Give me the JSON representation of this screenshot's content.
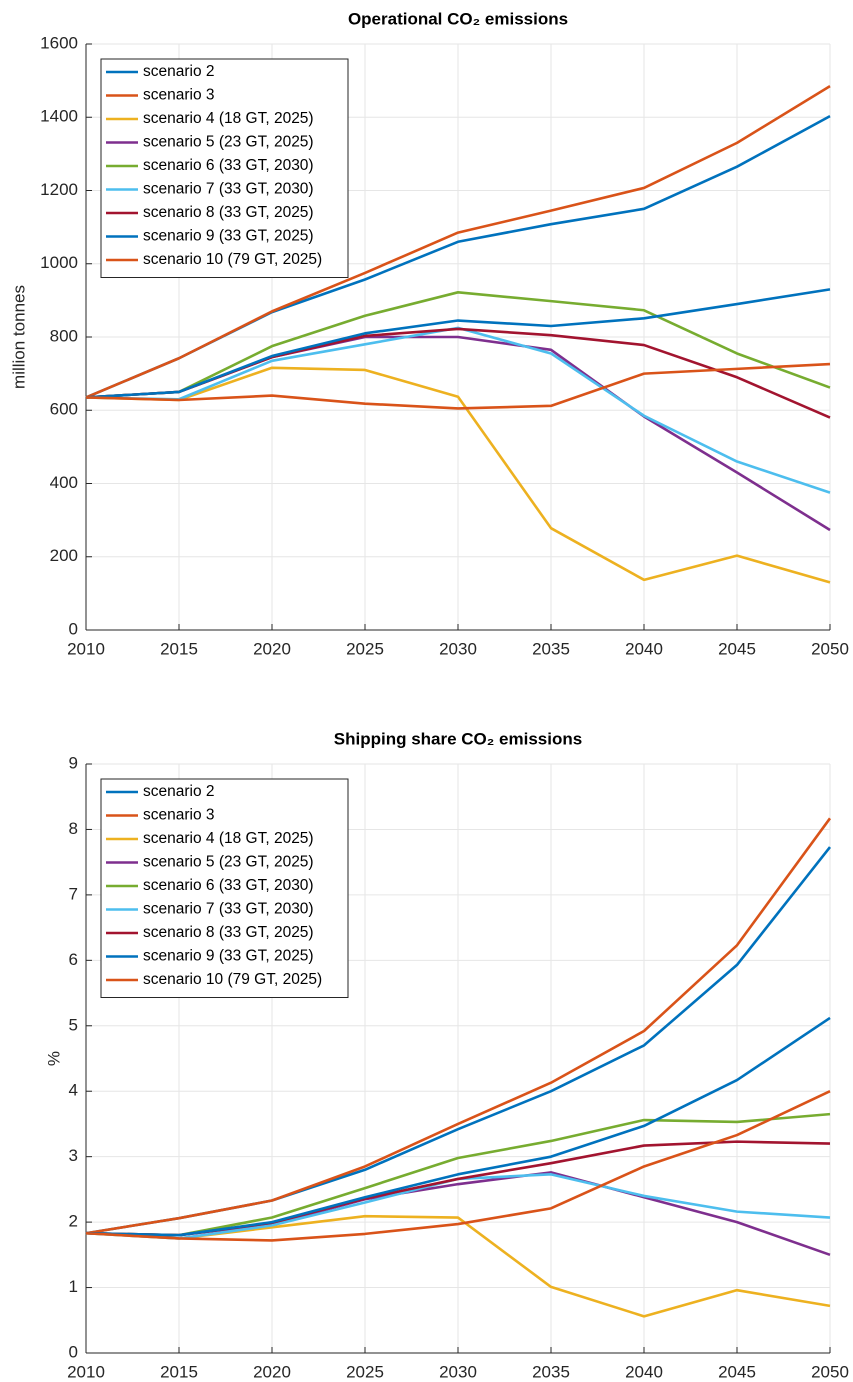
{
  "chart_data": [
    {
      "type": "line",
      "title": "Operational CO₂ emissions",
      "ylabel": "million tonnes",
      "x": [
        2010,
        2015,
        2020,
        2025,
        2030,
        2035,
        2040,
        2045,
        2050
      ],
      "xlim": [
        2010,
        2050
      ],
      "xticks": [
        2010,
        2015,
        2020,
        2025,
        2030,
        2035,
        2040,
        2045,
        2050
      ],
      "ylim": [
        0,
        1600
      ],
      "yticks": [
        0,
        200,
        400,
        600,
        800,
        1000,
        1200,
        1400,
        1600
      ],
      "grid": true,
      "legend": "northwest",
      "series": [
        {
          "name": "scenario 2",
          "color": "#0072BD",
          "values": [
            635,
            742,
            868,
            957,
            1060,
            1108,
            1150,
            1265,
            1403
          ]
        },
        {
          "name": "scenario 3",
          "color": "#D95319",
          "values": [
            635,
            742,
            870,
            975,
            1085,
            1145,
            1207,
            1330,
            1485
          ]
        },
        {
          "name": "scenario 4 (18 GT, 2025)",
          "color": "#EDB120",
          "values": [
            635,
            628,
            716,
            710,
            637,
            278,
            137,
            203,
            130
          ]
        },
        {
          "name": "scenario 5 (23 GT, 2025)",
          "color": "#7E2F8E",
          "values": [
            635,
            650,
            745,
            800,
            800,
            765,
            583,
            430,
            273
          ]
        },
        {
          "name": "scenario 6 (33 GT, 2030)",
          "color": "#77AC30",
          "values": [
            635,
            650,
            775,
            858,
            922,
            898,
            873,
            755,
            662
          ]
        },
        {
          "name": "scenario 7 (33 GT, 2030)",
          "color": "#4DBEEE",
          "values": [
            635,
            630,
            735,
            780,
            825,
            755,
            585,
            460,
            375
          ]
        },
        {
          "name": "scenario 8 (33 GT, 2025)",
          "color": "#A2142F",
          "values": [
            635,
            650,
            745,
            803,
            822,
            805,
            778,
            690,
            580
          ]
        },
        {
          "name": "scenario 9 (33 GT, 2025)",
          "color": "#0072BD",
          "values": [
            635,
            650,
            748,
            810,
            845,
            830,
            851,
            890,
            930
          ]
        },
        {
          "name": "scenario 10 (79 GT, 2025)",
          "color": "#D95319",
          "values": [
            635,
            628,
            640,
            618,
            605,
            612,
            700,
            713,
            726
          ]
        }
      ]
    },
    {
      "type": "line",
      "title": "Shipping share CO₂ emissions",
      "ylabel": "%",
      "x": [
        2010,
        2015,
        2020,
        2025,
        2030,
        2035,
        2040,
        2045,
        2050
      ],
      "xlim": [
        2010,
        2050
      ],
      "xticks": [
        2010,
        2015,
        2020,
        2025,
        2030,
        2035,
        2040,
        2045,
        2050
      ],
      "ylim": [
        0,
        9
      ],
      "yticks": [
        0,
        1,
        2,
        3,
        4,
        5,
        6,
        7,
        8,
        9
      ],
      "grid": true,
      "legend": "northwest",
      "series": [
        {
          "name": "scenario 2",
          "color": "#0072BD",
          "values": [
            1.83,
            2.06,
            2.33,
            2.8,
            3.42,
            4.0,
            4.7,
            5.93,
            7.73
          ]
        },
        {
          "name": "scenario 3",
          "color": "#D95319",
          "values": [
            1.83,
            2.06,
            2.33,
            2.85,
            3.5,
            4.13,
            4.92,
            6.23,
            8.17
          ]
        },
        {
          "name": "scenario 4 (18 GT, 2025)",
          "color": "#EDB120",
          "values": [
            1.83,
            1.75,
            1.92,
            2.09,
            2.07,
            1.01,
            0.56,
            0.96,
            0.72
          ]
        },
        {
          "name": "scenario 5 (23 GT, 2025)",
          "color": "#7E2F8E",
          "values": [
            1.83,
            1.8,
            1.97,
            2.35,
            2.58,
            2.76,
            2.38,
            2.0,
            1.5
          ]
        },
        {
          "name": "scenario 6 (33 GT, 2030)",
          "color": "#77AC30",
          "values": [
            1.83,
            1.8,
            2.07,
            2.52,
            2.98,
            3.24,
            3.56,
            3.53,
            3.65
          ]
        },
        {
          "name": "scenario 7 (33 GT, 2030)",
          "color": "#4DBEEE",
          "values": [
            1.83,
            1.75,
            1.95,
            2.3,
            2.66,
            2.73,
            2.4,
            2.16,
            2.07
          ]
        },
        {
          "name": "scenario 8 (33 GT, 2025)",
          "color": "#A2142F",
          "values": [
            1.83,
            1.8,
            1.99,
            2.36,
            2.66,
            2.9,
            3.17,
            3.23,
            3.2
          ]
        },
        {
          "name": "scenario 9 (33 GT, 2025)",
          "color": "#0072BD",
          "values": [
            1.83,
            1.8,
            2.0,
            2.38,
            2.73,
            3.0,
            3.47,
            4.17,
            5.12
          ]
        },
        {
          "name": "scenario 10 (79 GT, 2025)",
          "color": "#D95319",
          "values": [
            1.83,
            1.75,
            1.72,
            1.82,
            1.97,
            2.21,
            2.85,
            3.33,
            4.0
          ]
        }
      ]
    }
  ]
}
